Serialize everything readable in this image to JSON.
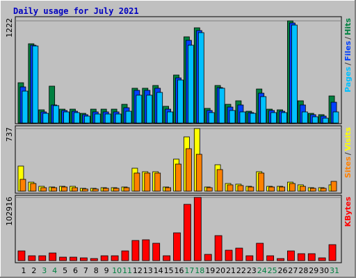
{
  "title": "Daily usage for July 2021",
  "chart_data": [
    {
      "type": "bar",
      "ylim": [
        0,
        1222
      ],
      "yticks": [
        1222
      ],
      "legend_separator": "/",
      "series": [
        {
          "name": "Hits",
          "color": "#008040",
          "values": [
            482,
            948,
            158,
            441,
            166,
            166,
            116,
            166,
            166,
            166,
            224,
            416,
            416,
            449,
            200,
            574,
            1031,
            1139,
            175,
            449,
            224,
            266,
            141,
            407,
            166,
            158,
            1222,
            266,
            116,
            100,
            324
          ]
        },
        {
          "name": "Files",
          "color": "#0040ff",
          "values": [
            432,
            931,
            133,
            216,
            150,
            141,
            100,
            133,
            133,
            133,
            183,
            391,
            391,
            416,
            166,
            540,
            989,
            1106,
            150,
            424,
            191,
            216,
            125,
            357,
            150,
            141,
            1197,
            216,
            100,
            83,
            249
          ]
        },
        {
          "name": "Pages",
          "color": "#00c0ff",
          "values": [
            382,
            922,
            116,
            208,
            133,
            125,
            83,
            108,
            108,
            108,
            141,
            333,
            333,
            366,
            133,
            515,
            931,
            1081,
            125,
            416,
            150,
            133,
            116,
            316,
            125,
            125,
            1172,
            133,
            75,
            58,
            133
          ]
        }
      ]
    },
    {
      "type": "bar",
      "ylim": [
        0,
        737
      ],
      "yticks": [
        737
      ],
      "legend_separator": "/",
      "series": [
        {
          "name": "Visits",
          "color": "#ffff00",
          "values": [
            295,
            106,
            57,
            49,
            57,
            57,
            33,
            33,
            41,
            41,
            49,
            270,
            229,
            229,
            49,
            377,
            639,
            737,
            49,
            311,
            90,
            82,
            57,
            229,
            57,
            57,
            106,
            74,
            41,
            41,
            74
          ]
        },
        {
          "name": "Sites",
          "color": "#ff8000",
          "values": [
            139,
            90,
            41,
            41,
            49,
            41,
            25,
            25,
            33,
            33,
            41,
            213,
            213,
            213,
            41,
            319,
            500,
            434,
            41,
            254,
            74,
            66,
            49,
            213,
            49,
            49,
            90,
            57,
            33,
            33,
            115
          ]
        }
      ]
    },
    {
      "type": "bar",
      "ylim": [
        0,
        102916
      ],
      "yticks": [
        102916
      ],
      "categories": [
        "1",
        "2",
        "3",
        "4",
        "5",
        "6",
        "7",
        "8",
        "9",
        "10",
        "11",
        "12",
        "13",
        "14",
        "15",
        "16",
        "17",
        "18",
        "19",
        "20",
        "21",
        "22",
        "23",
        "24",
        "25",
        "26",
        "27",
        "28",
        "29",
        "30",
        "31"
      ],
      "category_colors": [
        "#000000",
        "#000000",
        "#008040",
        "#008040",
        "#000000",
        "#000000",
        "#000000",
        "#000000",
        "#000000",
        "#008040",
        "#008040",
        "#000000",
        "#000000",
        "#000000",
        "#000000",
        "#000000",
        "#008040",
        "#008040",
        "#000000",
        "#000000",
        "#000000",
        "#000000",
        "#000000",
        "#008040",
        "#008040",
        "#000000",
        "#000000",
        "#000000",
        "#000000",
        "#000000",
        "#008040"
      ],
      "series": [
        {
          "name": "KBytes",
          "color": "#ff0000",
          "values": [
            15833,
            7917,
            7917,
            12440,
            5655,
            5655,
            4524,
            3393,
            7917,
            7917,
            15833,
            32797,
            33928,
            28274,
            7917,
            45238,
            91606,
            102916,
            10179,
            40714,
            16964,
            20357,
            7917,
            28274,
            7917,
            3393,
            15833,
            11309,
            11309,
            4524,
            26012
          ]
        }
      ]
    }
  ]
}
